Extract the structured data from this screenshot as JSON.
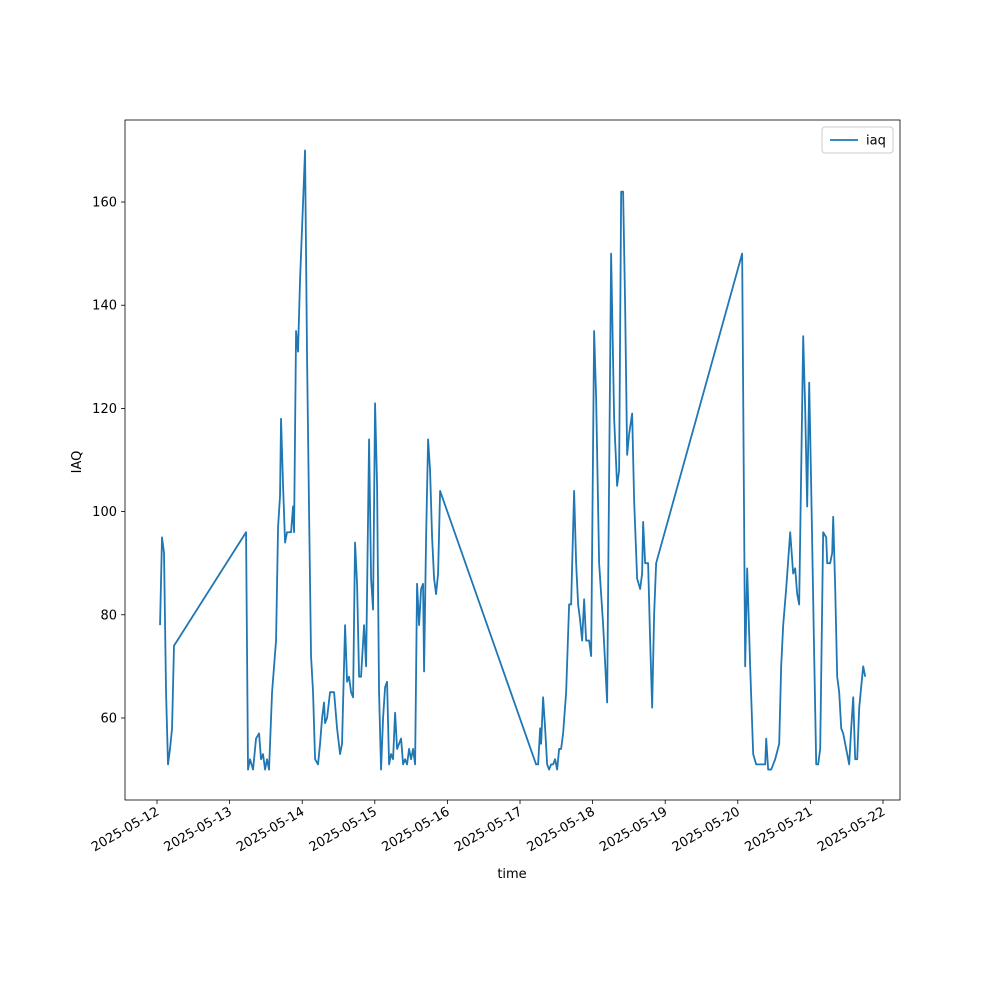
{
  "chart_data": {
    "type": "line",
    "x_label": "time",
    "y_label": "IAQ",
    "x": [
      "2025-05-12T01:00",
      "2025-05-12T01:39",
      "2025-05-12T02:19",
      "2025-05-12T02:59",
      "2025-05-12T03:38",
      "2025-05-12T04:18",
      "2025-05-12T04:58",
      "2025-05-12T05:37",
      "2025-05-13T05:26",
      "2025-05-13T06:05",
      "2025-05-13T06:45",
      "2025-05-13T07:45",
      "2025-05-13T08:44",
      "2025-05-13T09:44",
      "2025-05-13T10:23",
      "2025-05-13T11:03",
      "2025-05-13T11:43",
      "2025-05-13T12:22",
      "2025-05-13T13:02",
      "2025-05-13T14:02",
      "2025-05-13T15:21",
      "2025-05-13T16:01",
      "2025-05-13T16:40",
      "2025-05-13T17:00",
      "2025-05-13T17:40",
      "2025-05-13T18:20",
      "2025-05-13T18:59",
      "2025-05-13T20:19",
      "2025-05-13T20:58",
      "2025-05-13T21:18",
      "2025-05-13T21:58",
      "2025-05-13T22:37",
      "2025-05-13T23:17",
      "2025-05-14T00:17",
      "2025-05-14T00:56",
      "2025-05-14T01:36",
      "2025-05-14T02:16",
      "2025-05-14T02:55",
      "2025-05-14T03:35",
      "2025-05-14T04:15",
      "2025-05-14T05:14",
      "2025-05-14T05:54",
      "2025-05-14T06:34",
      "2025-05-14T07:13",
      "2025-05-14T07:33",
      "2025-05-14T08:13",
      "2025-05-14T09:12",
      "2025-05-14T10:32",
      "2025-05-14T11:31",
      "2025-05-14T12:31",
      "2025-05-14T13:10",
      "2025-05-14T14:10",
      "2025-05-14T14:50",
      "2025-05-14T15:29",
      "2025-05-14T16:09",
      "2025-05-14T16:49",
      "2025-05-14T17:28",
      "2025-05-14T18:08",
      "2025-05-14T18:48",
      "2025-05-14T19:27",
      "2025-05-14T20:27",
      "2025-05-14T21:07",
      "2025-05-14T22:06",
      "2025-05-14T22:46",
      "2025-05-14T23:25",
      "2025-05-15T00:05",
      "2025-05-15T00:45",
      "2025-05-15T01:24",
      "2025-05-15T02:04",
      "2025-05-15T02:44",
      "2025-05-15T03:24",
      "2025-05-15T04:03",
      "2025-05-15T04:43",
      "2025-05-15T05:23",
      "2025-05-15T06:02",
      "2025-05-15T06:42",
      "2025-05-15T07:22",
      "2025-05-15T08:01",
      "2025-05-15T08:41",
      "2025-05-15T09:21",
      "2025-05-15T10:00",
      "2025-05-15T10:40",
      "2025-05-15T11:20",
      "2025-05-15T11:59",
      "2025-05-15T12:39",
      "2025-05-15T13:19",
      "2025-05-15T13:58",
      "2025-05-15T14:38",
      "2025-05-15T15:18",
      "2025-05-15T15:57",
      "2025-05-15T16:17",
      "2025-05-15T16:57",
      "2025-05-15T17:37",
      "2025-05-15T18:16",
      "2025-05-15T18:56",
      "2025-05-15T19:36",
      "2025-05-15T20:15",
      "2025-05-15T20:55",
      "2025-05-15T21:35",
      "2025-05-17T05:19",
      "2025-05-17T05:59",
      "2025-05-17T06:39",
      "2025-05-17T06:59",
      "2025-05-17T07:38",
      "2025-05-17T08:18",
      "2025-05-17T08:58",
      "2025-05-17T09:37",
      "2025-05-17T10:17",
      "2025-05-17T10:57",
      "2025-05-17T11:36",
      "2025-05-17T12:16",
      "2025-05-17T12:56",
      "2025-05-17T13:35",
      "2025-05-17T14:15",
      "2025-05-17T15:15",
      "2025-05-17T16:14",
      "2025-05-17T16:54",
      "2025-05-17T17:53",
      "2025-05-17T18:33",
      "2025-05-17T19:13",
      "2025-05-17T19:52",
      "2025-05-17T20:32",
      "2025-05-17T21:12",
      "2025-05-17T21:51",
      "2025-05-17T22:51",
      "2025-05-17T23:31",
      "2025-05-18T00:30",
      "2025-05-18T01:10",
      "2025-05-18T02:09",
      "2025-05-18T03:29",
      "2025-05-18T04:48",
      "2025-05-18T06:07",
      "2025-05-18T07:07",
      "2025-05-18T08:06",
      "2025-05-18T08:46",
      "2025-05-18T09:26",
      "2025-05-18T10:05",
      "2025-05-18T10:45",
      "2025-05-18T11:25",
      "2025-05-18T12:04",
      "2025-05-18T13:04",
      "2025-05-18T13:44",
      "2025-05-18T14:43",
      "2025-05-18T15:43",
      "2025-05-18T16:22",
      "2025-05-18T16:42",
      "2025-05-18T17:22",
      "2025-05-18T18:21",
      "2025-05-18T19:01",
      "2025-05-18T19:41",
      "2025-05-18T20:20",
      "2025-05-18T21:00",
      "2025-05-20T01:26",
      "2025-05-20T02:26",
      "2025-05-20T03:06",
      "2025-05-20T04:05",
      "2025-05-20T05:05",
      "2025-05-20T06:04",
      "2025-05-20T07:24",
      "2025-05-20T09:03",
      "2025-05-20T09:23",
      "2025-05-20T10:02",
      "2025-05-20T11:02",
      "2025-05-20T12:21",
      "2025-05-20T13:41",
      "2025-05-20T14:20",
      "2025-05-20T15:00",
      "2025-05-20T15:59",
      "2025-05-20T17:19",
      "2025-05-20T18:18",
      "2025-05-20T18:58",
      "2025-05-20T19:38",
      "2025-05-20T20:17",
      "2025-05-20T21:37",
      "2025-05-20T22:16",
      "2025-05-20T22:56",
      "2025-05-20T23:36",
      "2025-05-21T00:15",
      "2025-05-21T01:15",
      "2025-05-21T01:55",
      "2025-05-21T02:34",
      "2025-05-21T03:14",
      "2025-05-21T04:13",
      "2025-05-21T05:13",
      "2025-05-21T05:33",
      "2025-05-21T06:32",
      "2025-05-21T07:12",
      "2025-05-21T07:32",
      "2025-05-21T08:12",
      "2025-05-21T08:51",
      "2025-05-21T09:31",
      "2025-05-21T10:11",
      "2025-05-21T10:50",
      "2025-05-21T11:50",
      "2025-05-21T12:49",
      "2025-05-21T13:29",
      "2025-05-21T14:09",
      "2025-05-21T14:48",
      "2025-05-21T15:28",
      "2025-05-21T16:08",
      "2025-05-21T16:47",
      "2025-05-21T17:27",
      "2025-05-21T18:07"
    ],
    "series": [
      {
        "name": "iaq",
        "color": "#1f77b4",
        "values": [
          78,
          95,
          92,
          65,
          51,
          54,
          58,
          74,
          96,
          50,
          52,
          50,
          56,
          57,
          52,
          53,
          50,
          52,
          50,
          65,
          75,
          97,
          103,
          118,
          105,
          94,
          96,
          96,
          101,
          96,
          135,
          131,
          145,
          160,
          170,
          130,
          100,
          72,
          65,
          52,
          51,
          55,
          60,
          63,
          59,
          60,
          65,
          65,
          58,
          53,
          55,
          78,
          67,
          68,
          65,
          64,
          94,
          86,
          68,
          68,
          78,
          70,
          114,
          87,
          81,
          121,
          105,
          65,
          50,
          60,
          66,
          67,
          51,
          53,
          52,
          61,
          54,
          55,
          56,
          51,
          52,
          51,
          54,
          52,
          54,
          51,
          86,
          78,
          85,
          86,
          69,
          95,
          114,
          108,
          95,
          87,
          84,
          88,
          104,
          51,
          51,
          58,
          55,
          64,
          58,
          51,
          50,
          51,
          51,
          52,
          50,
          54,
          54,
          57,
          65,
          82,
          82,
          104,
          90,
          82,
          79,
          75,
          83,
          75,
          75,
          72,
          135,
          122,
          90,
          78,
          63,
          150,
          118,
          105,
          108,
          162,
          162,
          140,
          111,
          115,
          119,
          102,
          87,
          85,
          88,
          98,
          90,
          90,
          75,
          62,
          80,
          90,
          150,
          70,
          89,
          70,
          53,
          51,
          51,
          51,
          56,
          50,
          50,
          52,
          55,
          70,
          78,
          85,
          96,
          88,
          89,
          84,
          82,
          134,
          120,
          101,
          125,
          105,
          72,
          51,
          51,
          54,
          96,
          95,
          90,
          90,
          92,
          99,
          85,
          68,
          65,
          58,
          57,
          54,
          51,
          58,
          64,
          52,
          52,
          62,
          66,
          70,
          68
        ]
      }
    ],
    "xlim": [
      "2025-05-11T13:25",
      "2025-05-22T05:37"
    ],
    "xticks": [
      "2025-05-12",
      "2025-05-13",
      "2025-05-14",
      "2025-05-15",
      "2025-05-16",
      "2025-05-17",
      "2025-05-18",
      "2025-05-19",
      "2025-05-20",
      "2025-05-21",
      "2025-05-22"
    ],
    "ylim": [
      44.1,
      175.9
    ],
    "yticks": [
      60,
      80,
      100,
      120,
      140,
      160
    ],
    "grid": false,
    "legend": "upper right"
  }
}
